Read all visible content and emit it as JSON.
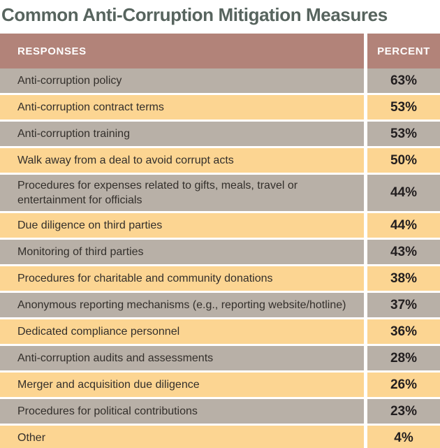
{
  "title": "Common Anti-Corruption Mitigation Measures",
  "table": {
    "headers": {
      "responses": "RESPONSES",
      "percent": "PERCENT"
    },
    "rows": [
      {
        "label": "Anti-corruption policy",
        "value": "63%"
      },
      {
        "label": "Anti-corruption contract terms",
        "value": "53%"
      },
      {
        "label": "Anti-corruption training",
        "value": "53%"
      },
      {
        "label": "Walk away from a deal to avoid corrupt acts",
        "value": "50%"
      },
      {
        "label": "Procedures for expenses related to gifts, meals, travel or entertainment for officials",
        "value": "44%"
      },
      {
        "label": "Due diligence on third parties",
        "value": "44%"
      },
      {
        "label": "Monitoring of third parties",
        "value": "43%"
      },
      {
        "label": "Procedures for charitable and community donations",
        "value": "38%"
      },
      {
        "label": "Anonymous reporting mechanisms (e.g., reporting website/hotline)",
        "value": "37%"
      },
      {
        "label": "Dedicated compliance personnel",
        "value": "36%"
      },
      {
        "label": "Anti-corruption audits and assessments",
        "value": "28%"
      },
      {
        "label": "Merger and acquisition due diligence",
        "value": "26%"
      },
      {
        "label": "Procedures for political contributions",
        "value": "23%"
      },
      {
        "label": "Other",
        "value": "4%"
      }
    ]
  },
  "colors": {
    "title_text": "#57645e",
    "header_background": "#b28379",
    "header_text": "#ffffff",
    "row_gray": "#b8b0a7",
    "row_peach": "#fcd592",
    "row_text": "#332f2b",
    "percent_text": "#221e1f",
    "divider": "#ffffff"
  },
  "chart_data": {
    "type": "table",
    "title": "Common Anti-Corruption Mitigation Measures",
    "columns": [
      "RESPONSES",
      "PERCENT"
    ],
    "categories": [
      "Anti-corruption policy",
      "Anti-corruption contract terms",
      "Anti-corruption training",
      "Walk away from a deal to avoid corrupt acts",
      "Procedures for expenses related to gifts, meals, travel or entertainment for officials",
      "Due diligence on third parties",
      "Monitoring of third parties",
      "Procedures for charitable and community donations",
      "Anonymous reporting mechanisms (e.g., reporting website/hotline)",
      "Dedicated compliance personnel",
      "Anti-corruption audits and assessments",
      "Merger and acquisition due diligence",
      "Procedures for political contributions",
      "Other"
    ],
    "values": [
      63,
      53,
      53,
      50,
      44,
      44,
      43,
      38,
      37,
      36,
      28,
      26,
      23,
      4
    ],
    "value_unit": "percent",
    "layout": "two-column table, alternating gray/peach row shading, rose header band"
  }
}
